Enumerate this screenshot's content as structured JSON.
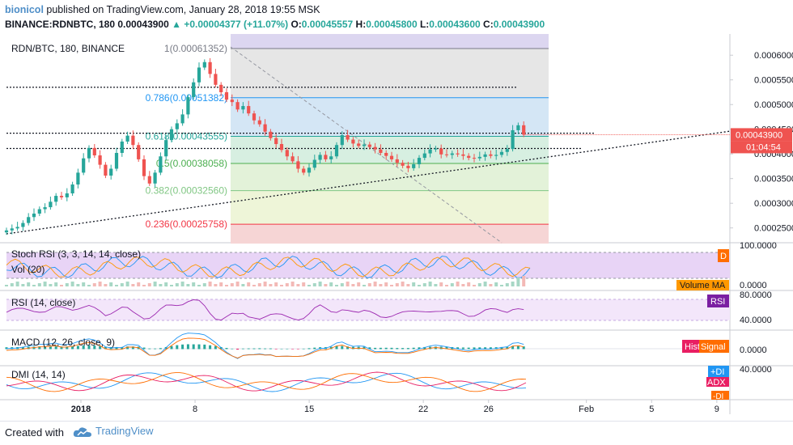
{
  "header": {
    "publisher": "bionicol",
    "published_text": "published on TradingView.com, January 28, 2018 19:55 MSK",
    "symbol_line": "BINANCE:RDNBTC, 180",
    "last_price": "0.00043900",
    "change": "▲ +0.00004377 (+11.07%)",
    "o_label": "O:",
    "o_value": "0.00045557",
    "h_label": "H:",
    "h_value": "0.00045800",
    "l_label": "L:",
    "l_value": "0.00043600",
    "c_label": "C:",
    "c_value": "0.00043900"
  },
  "footer": {
    "created_with": "Created with",
    "brand": "TradingView"
  },
  "colors": {
    "up": "#26a69a",
    "down": "#ef5350",
    "accent": "#4f8fc8"
  },
  "chart_data": [
    {
      "type": "candlestick",
      "title": "RDN/BTC, 180, BINANCE",
      "price_axis": {
        "min": 0.00022,
        "max": 0.000643,
        "ticks": [
          "0.00060000",
          "0.00055000",
          "0.00050000",
          "0.00045000",
          "0.00040000",
          "0.00035000",
          "0.00030000",
          "0.00025000"
        ],
        "last_price_label": "0.00043900",
        "countdown_label": "01:04:54"
      },
      "time_axis": {
        "ticks": [
          {
            "label": "2018",
            "day": 1
          },
          {
            "label": "8",
            "day": 8
          },
          {
            "label": "15",
            "day": 15
          },
          {
            "label": "22",
            "day": 22
          },
          {
            "label": "26",
            "day": 26
          },
          {
            "label": "Feb",
            "day": 32
          },
          {
            "label": "5",
            "day": 36
          },
          {
            "label": "9",
            "day": 40
          }
        ]
      },
      "closes": [
        0.000245,
        0.000249,
        0.000252,
        0.00026,
        0.000272,
        0.000279,
        0.000288,
        0.000292,
        0.000303,
        0.000315,
        0.000312,
        0.00032,
        0.000338,
        0.000362,
        0.000391,
        0.000412,
        0.000397,
        0.000378,
        0.000356,
        0.00037,
        0.000402,
        0.000425,
        0.000437,
        0.000418,
        0.000389,
        0.000355,
        0.00034,
        0.000362,
        0.000395,
        0.000428,
        0.00045,
        0.000462,
        0.00048,
        0.000515,
        0.000545,
        0.000575,
        0.000586,
        0.000562,
        0.00054,
        0.000525,
        0.00051,
        0.000505,
        0.00049,
        0.000497,
        0.000482,
        0.000468,
        0.00046,
        0.000445,
        0.000432,
        0.00042,
        0.000408,
        0.000395,
        0.000385,
        0.00037,
        0.000362,
        0.000372,
        0.000388,
        0.000398,
        0.000389,
        0.000395,
        0.000418,
        0.000438,
        0.000429,
        0.000421,
        0.000416,
        0.000419,
        0.000414,
        0.000409,
        0.000402,
        0.000396,
        0.000389,
        0.000382,
        0.000376,
        0.000371,
        0.000379,
        0.000392,
        0.000401,
        0.000409,
        0.000411,
        0.000399,
        0.000398,
        0.000401,
        0.000399,
        0.000396,
        0.000392,
        0.000391,
        0.000394,
        0.000399,
        0.000396,
        0.000398,
        0.000404,
        0.00041,
        0.000448,
        0.000458,
        0.000439
      ],
      "fibonacci": [
        {
          "level": "1",
          "price": 0.00061352,
          "label": "1(0.00061352)",
          "color": "#787b86"
        },
        {
          "level": "0.786",
          "price": 0.00051382,
          "label": "0.786(0.00051382)",
          "color": "#2196f3"
        },
        {
          "level": "0.618",
          "price": 0.00043555,
          "label": "0.618(0.00043555)",
          "color": "#26a69a"
        },
        {
          "level": "0.5",
          "price": 0.00038058,
          "label": "0.5(0.00038058)",
          "color": "#4caf50"
        },
        {
          "level": "0.382",
          "price": 0.0003256,
          "label": "0.382(0.00032560)",
          "color": "#81c784"
        },
        {
          "level": "0.236",
          "price": 0.00025758,
          "label": "0.236(0.00025758)",
          "color": "#f23645"
        }
      ]
    },
    {
      "type": "line",
      "title": "Stoch RSI (3, 3, 14, 14, close)",
      "axis_ticks": [
        "100.0000",
        "0.0000"
      ],
      "tag": "D"
    },
    {
      "type": "bar",
      "title": "Vol (20)",
      "tag": "Volume MA"
    },
    {
      "type": "line",
      "title": "RSI (14, close)",
      "axis_ticks": [
        "80.0000",
        "40.0000"
      ],
      "tag": "RSI"
    },
    {
      "type": "line",
      "title": "MACD (12, 26, close, 9)",
      "axis_ticks": [
        "0.0000"
      ],
      "tags": [
        "Hist",
        "Signal"
      ]
    },
    {
      "type": "line",
      "title": "DMI (14, 14)",
      "axis_ticks": [
        "40.0000"
      ],
      "tags": [
        "+DI",
        "ADX",
        "-DI"
      ]
    }
  ]
}
